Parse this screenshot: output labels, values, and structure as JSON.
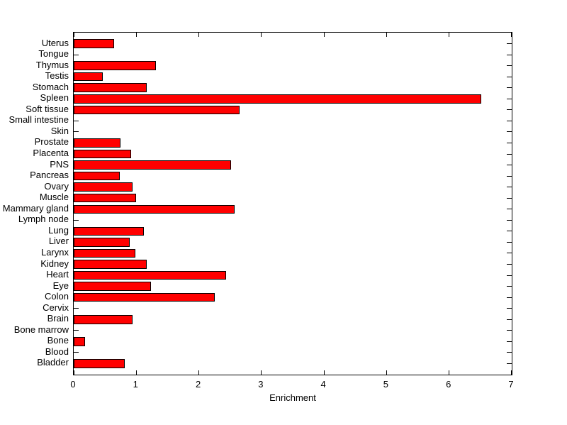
{
  "figure": {
    "background": "#ffffff",
    "axis_color": "#000000",
    "text_color": "#000000"
  },
  "chart_data": {
    "type": "bar",
    "orientation": "horizontal",
    "title": "",
    "xlabel": "Enrichment",
    "ylabel": "",
    "xlim": [
      0,
      7
    ],
    "xticks": [
      0,
      1,
      2,
      3,
      4,
      5,
      6,
      7
    ],
    "grid": false,
    "legend": null,
    "bar_color": "#ff0000",
    "bar_edge_color": "#000000",
    "categories": [
      "Uterus",
      "Tongue",
      "Thymus",
      "Testis",
      "Stomach",
      "Spleen",
      "Soft tissue",
      "Small intestine",
      "Skin",
      "Prostate",
      "Placenta",
      "PNS",
      "Pancreas",
      "Ovary",
      "Muscle",
      "Mammary gland",
      "Lymph node",
      "Lung",
      "Liver",
      "Larynx",
      "Kidney",
      "Heart",
      "Eye",
      "Colon",
      "Cervix",
      "Brain",
      "Bone marrow",
      "Bone",
      "Blood",
      "Bladder"
    ],
    "values": [
      0.65,
      0,
      1.31,
      0.46,
      1.17,
      6.51,
      2.65,
      0,
      0,
      0.75,
      0.92,
      2.51,
      0.74,
      0.94,
      1.0,
      2.57,
      0,
      1.12,
      0.89,
      0.98,
      1.17,
      2.43,
      1.23,
      2.25,
      0,
      0.94,
      0,
      0.18,
      0,
      0.82
    ]
  }
}
